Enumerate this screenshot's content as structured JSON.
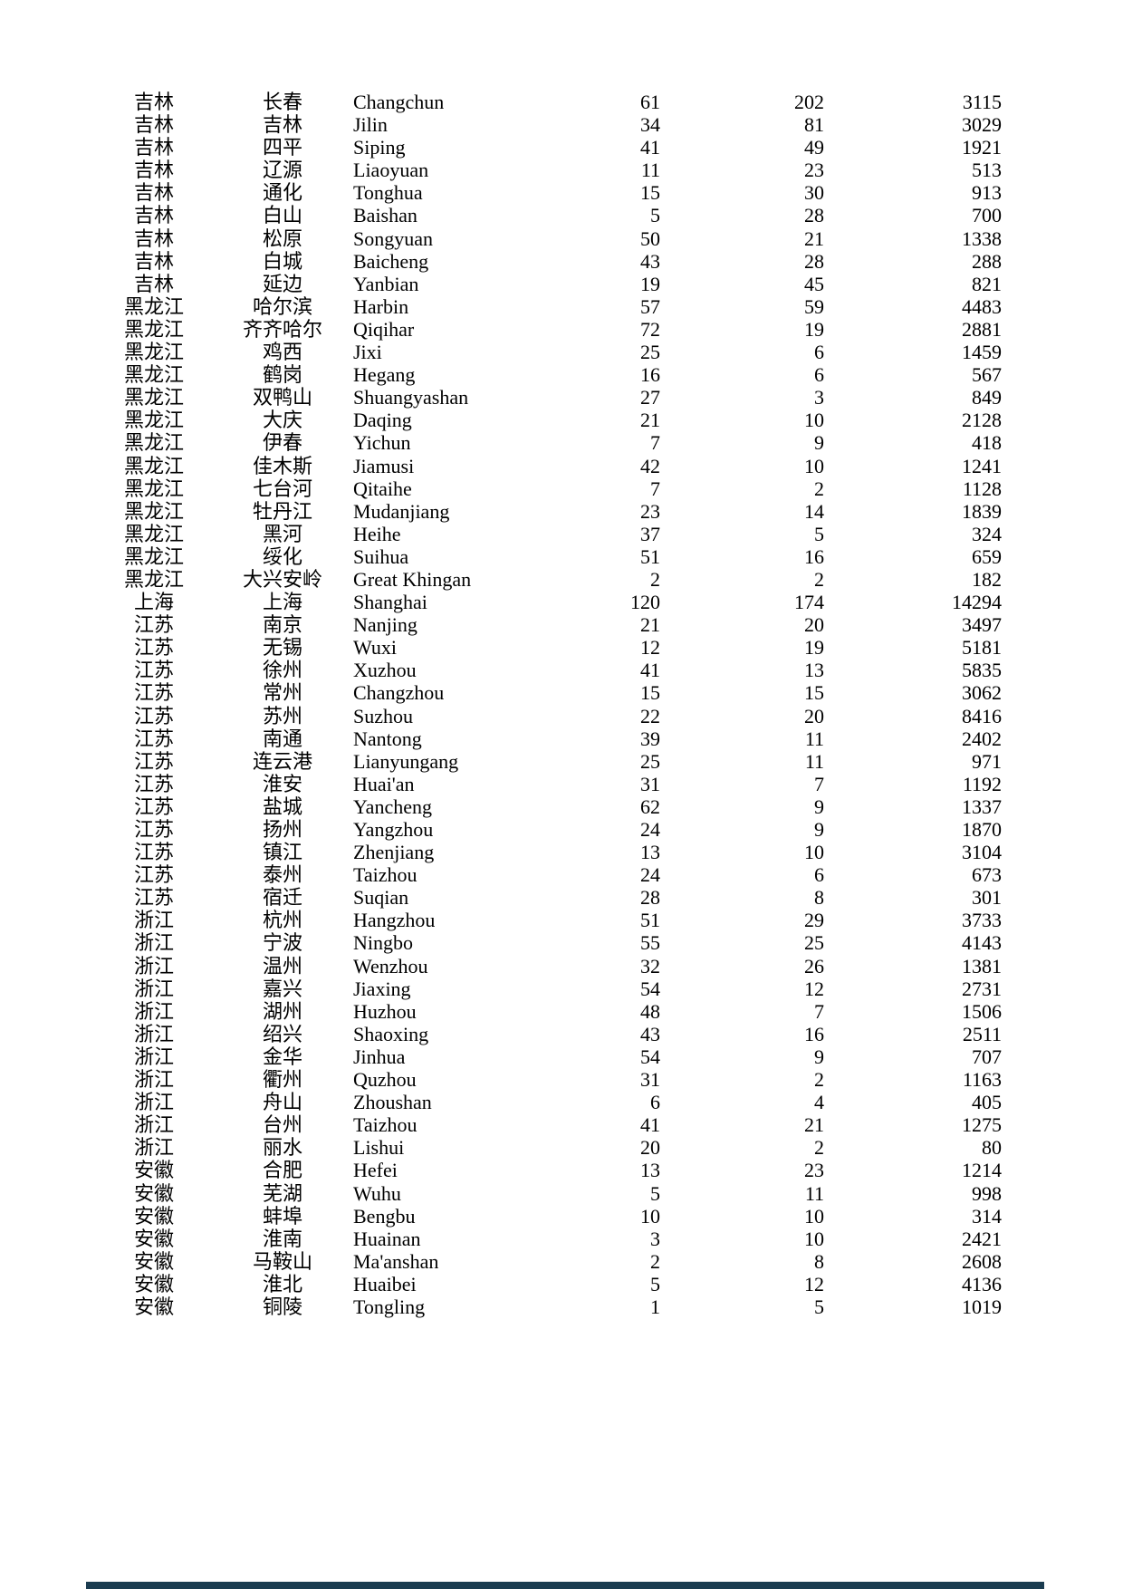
{
  "page": {
    "background_color": "#ffffff",
    "text_color": "#000000",
    "bottom_bar_color": "#1b3c50"
  },
  "table": {
    "columns": [
      "province_zh",
      "city_zh",
      "city_en",
      "value_1",
      "value_2",
      "value_3"
    ],
    "rows": [
      [
        "吉林",
        "长春",
        "Changchun",
        "61",
        "202",
        "3115"
      ],
      [
        "吉林",
        "吉林",
        "Jilin",
        "34",
        "81",
        "3029"
      ],
      [
        "吉林",
        "四平",
        "Siping",
        "41",
        "49",
        "1921"
      ],
      [
        "吉林",
        "辽源",
        "Liaoyuan",
        "11",
        "23",
        "513"
      ],
      [
        "吉林",
        "通化",
        "Tonghua",
        "15",
        "30",
        "913"
      ],
      [
        "吉林",
        "白山",
        "Baishan",
        "5",
        "28",
        "700"
      ],
      [
        "吉林",
        "松原",
        "Songyuan",
        "50",
        "21",
        "1338"
      ],
      [
        "吉林",
        "白城",
        "Baicheng",
        "43",
        "28",
        "288"
      ],
      [
        "吉林",
        "延边",
        "Yanbian",
        "19",
        "45",
        "821"
      ],
      [
        "黑龙江",
        "哈尔滨",
        "Harbin",
        "57",
        "59",
        "4483"
      ],
      [
        "黑龙江",
        "齐齐哈尔",
        "Qiqihar",
        "72",
        "19",
        "2881"
      ],
      [
        "黑龙江",
        "鸡西",
        "Jixi",
        "25",
        "6",
        "1459"
      ],
      [
        "黑龙江",
        "鹤岗",
        "Hegang",
        "16",
        "6",
        "567"
      ],
      [
        "黑龙江",
        "双鸭山",
        "Shuangyashan",
        "27",
        "3",
        "849"
      ],
      [
        "黑龙江",
        "大庆",
        "Daqing",
        "21",
        "10",
        "2128"
      ],
      [
        "黑龙江",
        "伊春",
        "Yichun",
        "7",
        "9",
        "418"
      ],
      [
        "黑龙江",
        "佳木斯",
        "Jiamusi",
        "42",
        "10",
        "1241"
      ],
      [
        "黑龙江",
        "七台河",
        "Qitaihe",
        "7",
        "2",
        "1128"
      ],
      [
        "黑龙江",
        "牡丹江",
        "Mudanjiang",
        "23",
        "14",
        "1839"
      ],
      [
        "黑龙江",
        "黑河",
        "Heihe",
        "37",
        "5",
        "324"
      ],
      [
        "黑龙江",
        "绥化",
        "Suihua",
        "51",
        "16",
        "659"
      ],
      [
        "黑龙江",
        "大兴安岭",
        "Great Khingan",
        "2",
        "2",
        "182"
      ],
      [
        "上海",
        "上海",
        "Shanghai",
        "120",
        "174",
        "14294"
      ],
      [
        "江苏",
        "南京",
        "Nanjing",
        "21",
        "20",
        "3497"
      ],
      [
        "江苏",
        "无锡",
        "Wuxi",
        "12",
        "19",
        "5181"
      ],
      [
        "江苏",
        "徐州",
        "Xuzhou",
        "41",
        "13",
        "5835"
      ],
      [
        "江苏",
        "常州",
        "Changzhou",
        "15",
        "15",
        "3062"
      ],
      [
        "江苏",
        "苏州",
        "Suzhou",
        "22",
        "20",
        "8416"
      ],
      [
        "江苏",
        "南通",
        "Nantong",
        "39",
        "11",
        "2402"
      ],
      [
        "江苏",
        "连云港",
        "Lianyungang",
        "25",
        "11",
        "971"
      ],
      [
        "江苏",
        "淮安",
        "Huai'an",
        "31",
        "7",
        "1192"
      ],
      [
        "江苏",
        "盐城",
        "Yancheng",
        "62",
        "9",
        "1337"
      ],
      [
        "江苏",
        "扬州",
        "Yangzhou",
        "24",
        "9",
        "1870"
      ],
      [
        "江苏",
        "镇江",
        "Zhenjiang",
        "13",
        "10",
        "3104"
      ],
      [
        "江苏",
        "泰州",
        "Taizhou",
        "24",
        "6",
        "673"
      ],
      [
        "江苏",
        "宿迁",
        "Suqian",
        "28",
        "8",
        "301"
      ],
      [
        "浙江",
        "杭州",
        "Hangzhou",
        "51",
        "29",
        "3733"
      ],
      [
        "浙江",
        "宁波",
        "Ningbo",
        "55",
        "25",
        "4143"
      ],
      [
        "浙江",
        "温州",
        "Wenzhou",
        "32",
        "26",
        "1381"
      ],
      [
        "浙江",
        "嘉兴",
        "Jiaxing",
        "54",
        "12",
        "2731"
      ],
      [
        "浙江",
        "湖州",
        "Huzhou",
        "48",
        "7",
        "1506"
      ],
      [
        "浙江",
        "绍兴",
        "Shaoxing",
        "43",
        "16",
        "2511"
      ],
      [
        "浙江",
        "金华",
        "Jinhua",
        "54",
        "9",
        "707"
      ],
      [
        "浙江",
        "衢州",
        "Quzhou",
        "31",
        "2",
        "1163"
      ],
      [
        "浙江",
        "舟山",
        "Zhoushan",
        "6",
        "4",
        "405"
      ],
      [
        "浙江",
        "台州",
        "Taizhou",
        "41",
        "21",
        "1275"
      ],
      [
        "浙江",
        "丽水",
        "Lishui",
        "20",
        "2",
        "80"
      ],
      [
        "安徽",
        "合肥",
        "Hefei",
        "13",
        "23",
        "1214"
      ],
      [
        "安徽",
        "芜湖",
        "Wuhu",
        "5",
        "11",
        "998"
      ],
      [
        "安徽",
        "蚌埠",
        "Bengbu",
        "10",
        "10",
        "314"
      ],
      [
        "安徽",
        "淮南",
        "Huainan",
        "3",
        "10",
        "2421"
      ],
      [
        "安徽",
        "马鞍山",
        "Ma'anshan",
        "2",
        "8",
        "2608"
      ],
      [
        "安徽",
        "淮北",
        "Huaibei",
        "5",
        "12",
        "4136"
      ],
      [
        "安徽",
        "铜陵",
        "Tongling",
        "1",
        "5",
        "1019"
      ]
    ]
  }
}
